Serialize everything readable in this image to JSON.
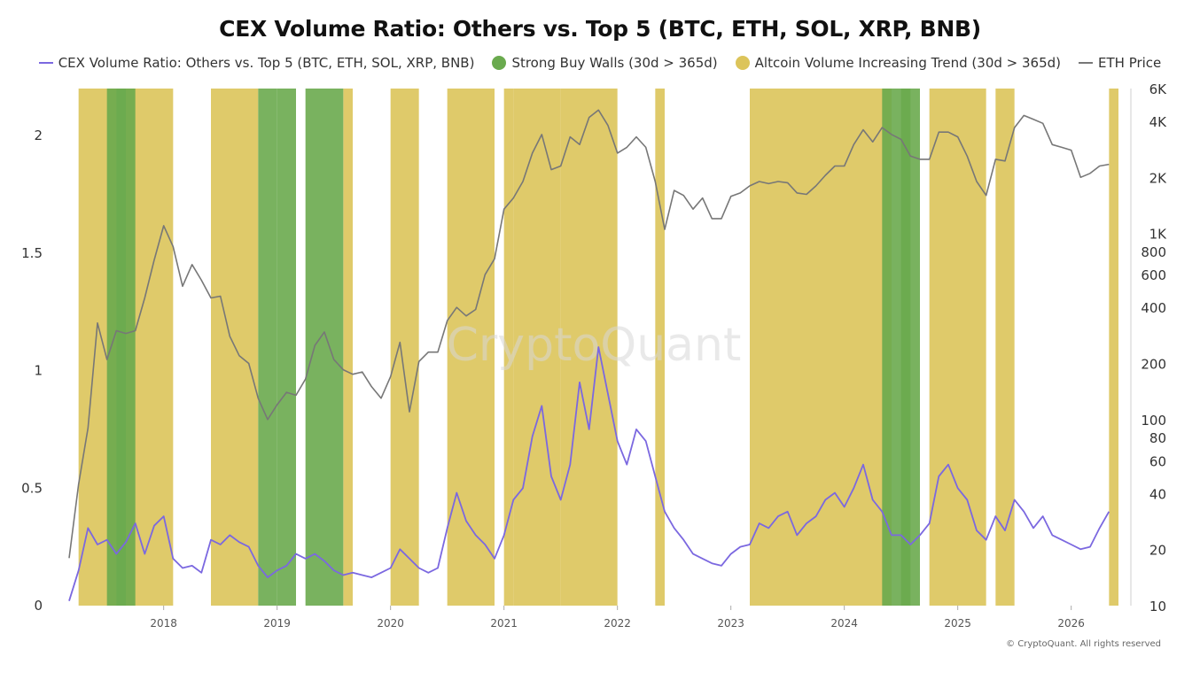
{
  "title": "CEX Volume Ratio: Others vs. Top 5 (BTC, ETH, SOL, XRP, BNB)",
  "legend": [
    {
      "label": "CEX Volume Ratio: Others vs. Top 5 (BTC, ETH, SOL, XRP, BNB)",
      "kind": "line",
      "color": "#7b68e0"
    },
    {
      "label": "Strong Buy Walls (30d > 365d)",
      "kind": "dot",
      "color": "#6aaa4e"
    },
    {
      "label": "Altcoin Volume Increasing Trend (30d > 365d)",
      "kind": "dot",
      "color": "#dcc45a"
    },
    {
      "label": "ETH Price",
      "kind": "line",
      "color": "#777777"
    }
  ],
  "watermark": "CryptoQuant",
  "copyright": "© CryptoQuant. All rights reserved",
  "chart_data": {
    "type": "line",
    "x_ticks": [
      "2018",
      "2019",
      "2020",
      "2021",
      "2022",
      "2023",
      "2024",
      "2025",
      "2026"
    ],
    "x_range": [
      "2017-03",
      "2026-06"
    ],
    "y_left": {
      "ticks": [
        "0",
        "0.5",
        "1",
        "1.5",
        "2"
      ],
      "range": [
        0,
        2.2
      ]
    },
    "y_right": {
      "scale": "log",
      "ticks": [
        "10",
        "20",
        "40",
        "60",
        "80",
        "100",
        "200",
        "400",
        "600",
        "800",
        "1K",
        "2K",
        "4K",
        "6K"
      ],
      "tick_values": [
        10,
        20,
        40,
        60,
        80,
        100,
        200,
        400,
        600,
        800,
        1000,
        2000,
        4000,
        6000
      ],
      "range": [
        10,
        6000
      ]
    },
    "series": [
      {
        "name": "ETH Price",
        "axis": "right",
        "color": "#777777",
        "points": [
          [
            "2017-03",
            18
          ],
          [
            "2017-04",
            45
          ],
          [
            "2017-05",
            90
          ],
          [
            "2017-06",
            330
          ],
          [
            "2017-07",
            210
          ],
          [
            "2017-08",
            300
          ],
          [
            "2017-09",
            290
          ],
          [
            "2017-10",
            300
          ],
          [
            "2017-11",
            450
          ],
          [
            "2017-12",
            720
          ],
          [
            "2018-01",
            1100
          ],
          [
            "2018-02",
            850
          ],
          [
            "2018-03",
            520
          ],
          [
            "2018-04",
            680
          ],
          [
            "2018-05",
            560
          ],
          [
            "2018-06",
            450
          ],
          [
            "2018-07",
            460
          ],
          [
            "2018-08",
            280
          ],
          [
            "2018-09",
            220
          ],
          [
            "2018-10",
            200
          ],
          [
            "2018-11",
            130
          ],
          [
            "2018-12",
            100
          ],
          [
            "2019-01",
            120
          ],
          [
            "2019-02",
            140
          ],
          [
            "2019-03",
            135
          ],
          [
            "2019-04",
            165
          ],
          [
            "2019-05",
            250
          ],
          [
            "2019-06",
            295
          ],
          [
            "2019-07",
            210
          ],
          [
            "2019-08",
            185
          ],
          [
            "2019-09",
            175
          ],
          [
            "2019-10",
            180
          ],
          [
            "2019-11",
            150
          ],
          [
            "2019-12",
            130
          ],
          [
            "2020-01",
            170
          ],
          [
            "2020-02",
            260
          ],
          [
            "2020-03",
            110
          ],
          [
            "2020-04",
            205
          ],
          [
            "2020-05",
            230
          ],
          [
            "2020-06",
            230
          ],
          [
            "2020-07",
            340
          ],
          [
            "2020-08",
            400
          ],
          [
            "2020-09",
            360
          ],
          [
            "2020-10",
            390
          ],
          [
            "2020-11",
            600
          ],
          [
            "2020-12",
            730
          ],
          [
            "2021-01",
            1350
          ],
          [
            "2021-02",
            1550
          ],
          [
            "2021-03",
            1900
          ],
          [
            "2021-04",
            2700
          ],
          [
            "2021-05",
            3400
          ],
          [
            "2021-06",
            2200
          ],
          [
            "2021-07",
            2300
          ],
          [
            "2021-08",
            3300
          ],
          [
            "2021-09",
            3000
          ],
          [
            "2021-10",
            4200
          ],
          [
            "2021-11",
            4600
          ],
          [
            "2021-12",
            3800
          ],
          [
            "2022-01",
            2700
          ],
          [
            "2022-02",
            2900
          ],
          [
            "2022-03",
            3300
          ],
          [
            "2022-04",
            2900
          ],
          [
            "2022-05",
            1900
          ],
          [
            "2022-06",
            1050
          ],
          [
            "2022-07",
            1700
          ],
          [
            "2022-08",
            1600
          ],
          [
            "2022-09",
            1350
          ],
          [
            "2022-10",
            1550
          ],
          [
            "2022-11",
            1200
          ],
          [
            "2022-12",
            1200
          ],
          [
            "2023-01",
            1580
          ],
          [
            "2023-02",
            1650
          ],
          [
            "2023-03",
            1800
          ],
          [
            "2023-04",
            1900
          ],
          [
            "2023-05",
            1850
          ],
          [
            "2023-06",
            1900
          ],
          [
            "2023-07",
            1870
          ],
          [
            "2023-08",
            1650
          ],
          [
            "2023-09",
            1620
          ],
          [
            "2023-10",
            1800
          ],
          [
            "2023-11",
            2050
          ],
          [
            "2023-12",
            2300
          ],
          [
            "2024-01",
            2300
          ],
          [
            "2024-02",
            3000
          ],
          [
            "2024-03",
            3600
          ],
          [
            "2024-04",
            3100
          ],
          [
            "2024-05",
            3700
          ],
          [
            "2024-06",
            3400
          ],
          [
            "2024-07",
            3200
          ],
          [
            "2024-08",
            2600
          ],
          [
            "2024-09",
            2500
          ],
          [
            "2024-10",
            2500
          ],
          [
            "2024-11",
            3500
          ],
          [
            "2024-12",
            3500
          ],
          [
            "2025-01",
            3300
          ],
          [
            "2025-02",
            2600
          ],
          [
            "2025-03",
            1900
          ],
          [
            "2025-04",
            1600
          ],
          [
            "2025-05",
            2500
          ],
          [
            "2025-06",
            2450
          ],
          [
            "2025-07",
            3700
          ],
          [
            "2025-08",
            4300
          ],
          [
            "2025-09",
            4100
          ],
          [
            "2025-10",
            3900
          ],
          [
            "2025-11",
            3000
          ],
          [
            "2025-12",
            2900
          ],
          [
            "2026-01",
            2800
          ],
          [
            "2026-02",
            2000
          ],
          [
            "2026-03",
            2100
          ],
          [
            "2026-04",
            2300
          ],
          [
            "2026-05",
            2350
          ]
        ]
      },
      {
        "name": "CEX Volume Ratio: Others vs. Top 5 (BTC, ETH, SOL, XRP, BNB)",
        "axis": "left",
        "color": "#7b68e0",
        "points": [
          [
            "2017-03",
            0.02
          ],
          [
            "2017-04",
            0.15
          ],
          [
            "2017-05",
            0.33
          ],
          [
            "2017-06",
            0.26
          ],
          [
            "2017-07",
            0.28
          ],
          [
            "2017-08",
            0.22
          ],
          [
            "2017-09",
            0.27
          ],
          [
            "2017-10",
            0.35
          ],
          [
            "2017-11",
            0.22
          ],
          [
            "2017-12",
            0.34
          ],
          [
            "2018-01",
            0.38
          ],
          [
            "2018-02",
            0.2
          ],
          [
            "2018-03",
            0.16
          ],
          [
            "2018-04",
            0.17
          ],
          [
            "2018-05",
            0.14
          ],
          [
            "2018-06",
            0.28
          ],
          [
            "2018-07",
            0.26
          ],
          [
            "2018-08",
            0.3
          ],
          [
            "2018-09",
            0.27
          ],
          [
            "2018-10",
            0.25
          ],
          [
            "2018-11",
            0.17
          ],
          [
            "2018-12",
            0.12
          ],
          [
            "2019-01",
            0.15
          ],
          [
            "2019-02",
            0.17
          ],
          [
            "2019-03",
            0.22
          ],
          [
            "2019-04",
            0.2
          ],
          [
            "2019-05",
            0.22
          ],
          [
            "2019-06",
            0.19
          ],
          [
            "2019-07",
            0.15
          ],
          [
            "2019-08",
            0.13
          ],
          [
            "2019-09",
            0.14
          ],
          [
            "2019-10",
            0.13
          ],
          [
            "2019-11",
            0.12
          ],
          [
            "2019-12",
            0.14
          ],
          [
            "2020-01",
            0.16
          ],
          [
            "2020-02",
            0.24
          ],
          [
            "2020-03",
            0.2
          ],
          [
            "2020-04",
            0.16
          ],
          [
            "2020-05",
            0.14
          ],
          [
            "2020-06",
            0.16
          ],
          [
            "2020-07",
            0.33
          ],
          [
            "2020-08",
            0.48
          ],
          [
            "2020-09",
            0.36
          ],
          [
            "2020-10",
            0.3
          ],
          [
            "2020-11",
            0.26
          ],
          [
            "2020-12",
            0.2
          ],
          [
            "2021-01",
            0.3
          ],
          [
            "2021-02",
            0.45
          ],
          [
            "2021-03",
            0.5
          ],
          [
            "2021-04",
            0.72
          ],
          [
            "2021-05",
            0.85
          ],
          [
            "2021-06",
            0.55
          ],
          [
            "2021-07",
            0.45
          ],
          [
            "2021-08",
            0.6
          ],
          [
            "2021-09",
            0.95
          ],
          [
            "2021-10",
            0.75
          ],
          [
            "2021-11",
            1.1
          ],
          [
            "2021-12",
            0.9
          ],
          [
            "2022-01",
            0.7
          ],
          [
            "2022-02",
            0.6
          ],
          [
            "2022-03",
            0.75
          ],
          [
            "2022-04",
            0.7
          ],
          [
            "2022-05",
            0.55
          ],
          [
            "2022-06",
            0.4
          ],
          [
            "2022-07",
            0.33
          ],
          [
            "2022-08",
            0.28
          ],
          [
            "2022-09",
            0.22
          ],
          [
            "2022-10",
            0.2
          ],
          [
            "2022-11",
            0.18
          ],
          [
            "2022-12",
            0.17
          ],
          [
            "2023-01",
            0.22
          ],
          [
            "2023-02",
            0.25
          ],
          [
            "2023-03",
            0.26
          ],
          [
            "2023-04",
            0.35
          ],
          [
            "2023-05",
            0.33
          ],
          [
            "2023-06",
            0.38
          ],
          [
            "2023-07",
            0.4
          ],
          [
            "2023-08",
            0.3
          ],
          [
            "2023-09",
            0.35
          ],
          [
            "2023-10",
            0.38
          ],
          [
            "2023-11",
            0.45
          ],
          [
            "2023-12",
            0.48
          ],
          [
            "2024-01",
            0.42
          ],
          [
            "2024-02",
            0.5
          ],
          [
            "2024-03",
            0.6
          ],
          [
            "2024-04",
            0.45
          ],
          [
            "2024-05",
            0.4
          ],
          [
            "2024-06",
            0.3
          ],
          [
            "2024-07",
            0.3
          ],
          [
            "2024-08",
            0.26
          ],
          [
            "2024-09",
            0.3
          ],
          [
            "2024-10",
            0.35
          ],
          [
            "2024-11",
            0.55
          ],
          [
            "2024-12",
            0.6
          ],
          [
            "2025-01",
            0.5
          ],
          [
            "2025-02",
            0.45
          ],
          [
            "2025-03",
            0.32
          ],
          [
            "2025-04",
            0.28
          ],
          [
            "2025-05",
            0.38
          ],
          [
            "2025-06",
            0.32
          ],
          [
            "2025-07",
            0.45
          ],
          [
            "2025-08",
            0.4
          ],
          [
            "2025-09",
            0.33
          ],
          [
            "2025-10",
            0.38
          ],
          [
            "2025-11",
            0.3
          ],
          [
            "2025-12",
            0.28
          ],
          [
            "2026-01",
            0.26
          ],
          [
            "2026-02",
            0.24
          ],
          [
            "2026-03",
            0.25
          ],
          [
            "2026-04",
            0.33
          ],
          [
            "2026-05",
            0.4
          ]
        ]
      }
    ],
    "highlight_ranges": [
      {
        "name": "Altcoin Volume Increasing Trend (30d > 365d)",
        "color": "#dcc45a",
        "ranges": [
          [
            "2017-04",
            "2017-07"
          ],
          [
            "2017-09",
            "2017-11"
          ],
          [
            "2017-12",
            "2018-01"
          ],
          [
            "2018-06",
            "2018-10"
          ],
          [
            "2019-08",
            "2019-08"
          ],
          [
            "2020-01",
            "2020-03"
          ],
          [
            "2020-07",
            "2020-11"
          ],
          [
            "2021-01",
            "2021-01"
          ],
          [
            "2021-02",
            "2021-06"
          ],
          [
            "2021-07",
            "2021-12"
          ],
          [
            "2022-05",
            "2022-05"
          ],
          [
            "2023-03",
            "2024-05"
          ],
          [
            "2024-10",
            "2024-11"
          ],
          [
            "2024-12",
            "2025-02"
          ],
          [
            "2025-03",
            "2025-03"
          ],
          [
            "2025-05",
            "2025-06"
          ],
          [
            "2026-05",
            "2026-05"
          ]
        ]
      },
      {
        "name": "Strong Buy Walls (30d > 365d)",
        "color": "#6aaa4e",
        "ranges": [
          [
            "2017-07",
            "2017-08"
          ],
          [
            "2017-08",
            "2017-09"
          ],
          [
            "2018-11",
            "2018-12"
          ],
          [
            "2019-01",
            "2019-02"
          ],
          [
            "2019-04",
            "2019-07"
          ],
          [
            "2024-05",
            "2024-07"
          ],
          [
            "2024-07",
            "2024-08"
          ]
        ]
      }
    ]
  }
}
